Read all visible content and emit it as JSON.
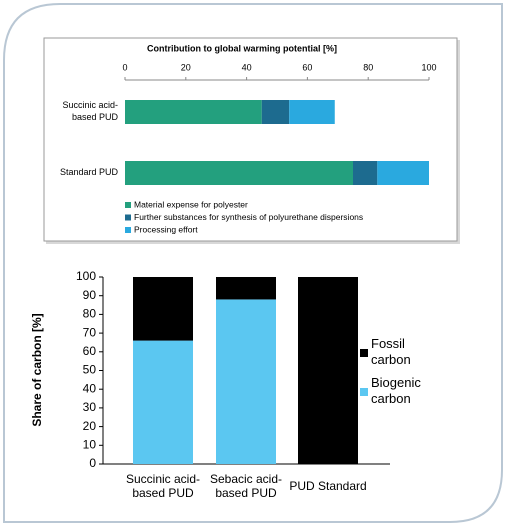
{
  "chart_data": [
    {
      "type": "bar",
      "orientation": "horizontal",
      "stacked": true,
      "title": "Contribution to global warming potential [%]",
      "categories": [
        "Succinic acid-based PUD",
        "Standard PUD"
      ],
      "series": [
        {
          "name": "Material expense for polyester",
          "color": "#23a07e",
          "values": [
            45,
            75
          ]
        },
        {
          "name": "Further substances for synthesis of polyurethane dispersions",
          "color": "#1d6b8f",
          "values": [
            9,
            8
          ]
        },
        {
          "name": "Processing effort",
          "color": "#2aa9df",
          "values": [
            15,
            17
          ]
        }
      ],
      "xlim": [
        0,
        100
      ],
      "xticks": [
        0,
        20,
        40,
        60,
        80,
        100
      ],
      "legend": "bottom"
    },
    {
      "type": "bar",
      "orientation": "vertical",
      "stacked": true,
      "y_label": "Share of carbon [%]",
      "categories": [
        "Succinic acid-based PUD",
        "Sebacic acid-based PUD",
        "PUD Standard"
      ],
      "series": [
        {
          "name": "Biogenic carbon",
          "color": "#5bc7f1",
          "values": [
            66,
            88,
            0
          ]
        },
        {
          "name": "Fossil carbon",
          "color": "#000000",
          "values": [
            34,
            12,
            100
          ]
        }
      ],
      "ylim": [
        0,
        100
      ],
      "yticks": [
        0,
        10,
        20,
        30,
        40,
        50,
        60,
        70,
        80,
        90,
        100
      ],
      "legend": "right"
    }
  ]
}
